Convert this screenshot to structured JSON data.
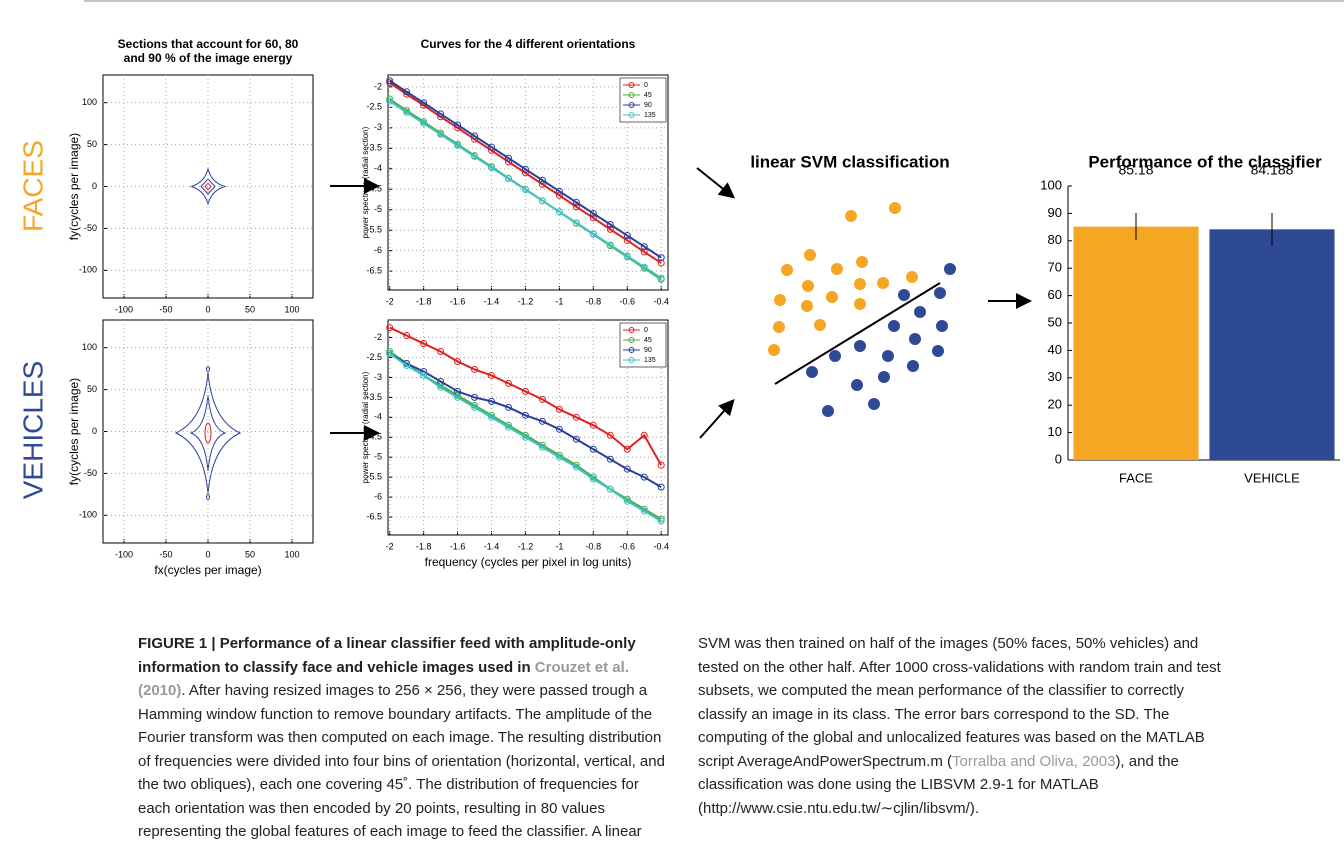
{
  "rows": [
    "FACES",
    "VEHICLES"
  ],
  "svm_title": "linear SVM classification",
  "chart_data": [
    {
      "type": "contour",
      "title": [
        "Sections that account for 60, 80",
        "and 90 % of the image energy"
      ],
      "ylabel": "fy(cycles per image)",
      "xlim": [
        -125,
        125
      ],
      "ylim": [
        -133,
        133
      ],
      "xticks": [
        -100,
        -50,
        0,
        50,
        100
      ],
      "yticks": [
        -100,
        -50,
        0,
        50,
        100
      ],
      "grid": true
    },
    {
      "type": "contour",
      "xlabel": "fx(cycles per image)",
      "ylabel": "fy(cycles per image)",
      "xlim": [
        -125,
        125
      ],
      "ylim": [
        -133,
        133
      ],
      "xticks": [
        -100,
        -50,
        0,
        50,
        100
      ],
      "yticks": [
        -100,
        -50,
        0,
        50,
        100
      ],
      "grid": true
    },
    {
      "type": "line",
      "title": "Curves for the 4 different orientations",
      "ylabel": "power spectrum (radial section)",
      "xlim": [
        -2.01,
        -0.36
      ],
      "ylim": [
        -6.96,
        -1.71
      ],
      "xticks": [
        -2,
        -1.8,
        -1.6,
        -1.4,
        -1.2,
        -1,
        -0.8,
        -0.6,
        -0.4
      ],
      "yticks": [
        -2,
        -2.5,
        -3,
        -3.5,
        -4,
        -4.5,
        -5,
        -5.5,
        -6,
        -6.5
      ],
      "grid": true,
      "legend": "top-right",
      "x": [
        -2,
        -1.9,
        -1.8,
        -1.7,
        -1.6,
        -1.5,
        -1.4,
        -1.3,
        -1.2,
        -1.1,
        -1,
        -0.9,
        -0.8,
        -0.7,
        -0.6,
        -0.5,
        -0.4
      ],
      "series": [
        {
          "name": "0",
          "color": "#e02020",
          "values": [
            -1.9,
            -2.18,
            -2.45,
            -2.73,
            -3.0,
            -3.28,
            -3.55,
            -3.83,
            -4.1,
            -4.38,
            -4.65,
            -4.93,
            -5.2,
            -5.48,
            -5.75,
            -6.03,
            -6.3
          ]
        },
        {
          "name": "45",
          "color": "#4caf3a",
          "values": [
            -2.3,
            -2.58,
            -2.85,
            -3.13,
            -3.4,
            -3.68,
            -3.95,
            -4.23,
            -4.5,
            -4.78,
            -5.05,
            -5.33,
            -5.6,
            -5.88,
            -6.15,
            -6.43,
            -6.7
          ]
        },
        {
          "name": "90",
          "color": "#2a3f9a",
          "values": [
            -1.85,
            -2.12,
            -2.39,
            -2.66,
            -2.93,
            -3.2,
            -3.47,
            -3.74,
            -4.01,
            -4.28,
            -4.55,
            -4.82,
            -5.09,
            -5.36,
            -5.63,
            -5.9,
            -6.17
          ]
        },
        {
          "name": "135",
          "color": "#40c0c8",
          "values": [
            -2.35,
            -2.62,
            -2.89,
            -3.16,
            -3.43,
            -3.7,
            -3.97,
            -4.24,
            -4.51,
            -4.78,
            -5.05,
            -5.32,
            -5.59,
            -5.86,
            -6.13,
            -6.4,
            -6.67
          ]
        }
      ]
    },
    {
      "type": "line",
      "ylabel": "power spectrum (radial section)",
      "xlabel": "frequency (cycles per pixel in log units)",
      "xlim": [
        -2.01,
        -0.36
      ],
      "ylim": [
        -6.95,
        -1.56
      ],
      "xticks": [
        -2,
        -1.8,
        -1.6,
        -1.4,
        -1.2,
        -1,
        -0.8,
        -0.6,
        -0.4
      ],
      "yticks": [
        -2,
        -2.5,
        -3,
        -3.5,
        -4,
        -4.5,
        -5,
        -5.5,
        -6,
        -6.5
      ],
      "grid": true,
      "legend": "top-right",
      "x": [
        -2,
        -1.9,
        -1.8,
        -1.7,
        -1.6,
        -1.5,
        -1.4,
        -1.3,
        -1.2,
        -1.1,
        -1,
        -0.9,
        -0.8,
        -0.7,
        -0.6,
        -0.5,
        -0.4
      ],
      "series": [
        {
          "name": "0",
          "color": "#e02020",
          "values": [
            -1.75,
            -1.95,
            -2.15,
            -2.35,
            -2.6,
            -2.8,
            -2.95,
            -3.15,
            -3.35,
            -3.55,
            -3.8,
            -4.0,
            -4.2,
            -4.45,
            -4.8,
            -4.45,
            -5.2
          ]
        },
        {
          "name": "45",
          "color": "#4caf3a",
          "values": [
            -2.35,
            -2.65,
            -2.95,
            -3.2,
            -3.45,
            -3.7,
            -3.95,
            -4.2,
            -4.45,
            -4.7,
            -4.95,
            -5.2,
            -5.5,
            -5.8,
            -6.05,
            -6.3,
            -6.55
          ]
        },
        {
          "name": "90",
          "color": "#2a3f9a",
          "values": [
            -2.4,
            -2.65,
            -2.85,
            -3.1,
            -3.35,
            -3.5,
            -3.6,
            -3.75,
            -3.95,
            -4.1,
            -4.3,
            -4.55,
            -4.8,
            -5.05,
            -5.3,
            -5.5,
            -5.75
          ]
        },
        {
          "name": "135",
          "color": "#40c0c8",
          "values": [
            -2.4,
            -2.7,
            -2.95,
            -3.25,
            -3.5,
            -3.75,
            -4.0,
            -4.25,
            -4.5,
            -4.75,
            -5.0,
            -5.25,
            -5.55,
            -5.8,
            -6.1,
            -6.35,
            -6.6
          ]
        }
      ]
    },
    {
      "type": "bar",
      "title": "Performance of the classifier",
      "categories": [
        "FACE",
        "VEHICLE"
      ],
      "values": [
        85.18,
        84.188
      ],
      "errors": [
        5,
        6
      ],
      "colors": [
        "#f5a623",
        "#2e4a94"
      ],
      "ylim": [
        0,
        100
      ],
      "yticks": [
        0,
        10,
        20,
        30,
        40,
        50,
        60,
        70,
        80,
        90,
        100
      ]
    }
  ],
  "caption": {
    "title": "FIGURE 1 | Performance of a linear classifier feed with amplitude-only information to classify face and vehicle images used in ",
    "ref1": "Crouzet et al. (2010)",
    "body1": ". After having resized images to 256 × 256, they were passed trough a Hamming window function to remove boundary artifacts. The amplitude of the Fourier transform was then computed on each image. The resulting distribution of frequencies were divided into four bins of orientation (horizontal, vertical, and the two obliques), each one covering 45˚. The distribution of frequencies for each orientation was then encoded by 20 points, resulting in 80 values representing the global features of each image to feed the classifier. A linear SVM was then trained on half of the images (50% faces, 50% vehicles) and tested on the other half. After 1000 cross-validations with random train and test subsets, we computed the mean performance of the classifier to correctly classify an image in its class. The error bars correspond to the SD. The computing of the global and unlocalized features was based on the MATLAB script AverageAndPowerSpectrum.m (",
    "ref2": "Torralba and Oliva, 2003",
    "body2": "), and the classification was done using the LIBSVM 2.9-1 for MATLAB (http://www.csie.ntu.edu.tw/∼cjlin/libsvm/)."
  }
}
